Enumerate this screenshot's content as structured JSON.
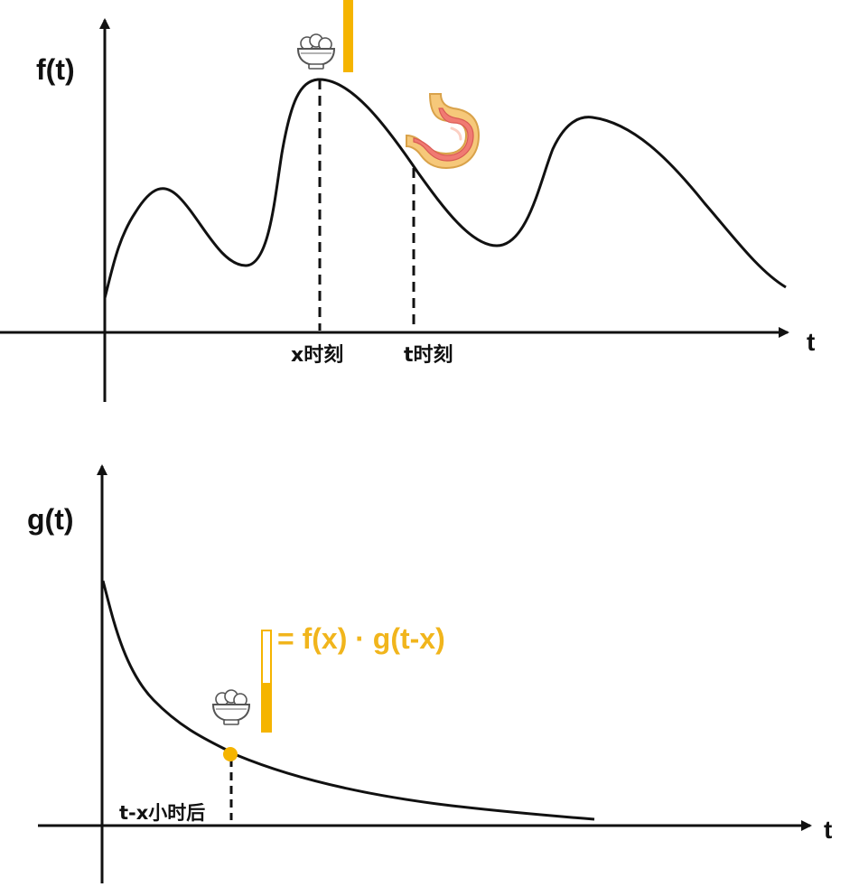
{
  "top_plot": {
    "y_label": "f(t)",
    "x_label": "t",
    "marker_x_label": "x时刻",
    "marker_t_label": "t时刻",
    "bowl_icon": "rice-bowl-icon",
    "stomach_icon": "stomach-icon",
    "bar_color": "#f5b400"
  },
  "bottom_plot": {
    "y_label": "g(t)",
    "x_label": "t",
    "marker_label": "t-x小时后",
    "formula": "= f(x) · g(t-x)",
    "bowl_icon": "rice-bowl-icon",
    "highlight_color": "#f5b400"
  },
  "colors": {
    "curve": "#111111",
    "accent": "#f5b400",
    "formula": "#f1b51c",
    "stomach_fill": "#f07a72",
    "stomach_outline": "#e8b45a"
  }
}
